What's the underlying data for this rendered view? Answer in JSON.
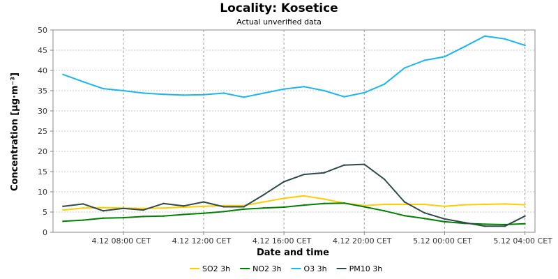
{
  "chart_data": {
    "type": "line",
    "title": "Locality: Kosetice",
    "subtitle": "Actual unverified data",
    "xlabel": "Date and time",
    "ylabel": "Concentration [µg·m⁻³]",
    "ylim": [
      0,
      50
    ],
    "yticks": [
      0,
      5,
      10,
      15,
      20,
      25,
      30,
      35,
      40,
      45,
      50
    ],
    "x_tick_labels": [
      {
        "hour": 8,
        "label": "4.12 08:00 CET"
      },
      {
        "hour": 12,
        "label": "4.12 12:00 CET"
      },
      {
        "hour": 16,
        "label": "4.12 16:00 CET"
      },
      {
        "hour": 20,
        "label": "4.12 20:00 CET"
      },
      {
        "hour": 24,
        "label": "5.12 00:00 CET"
      },
      {
        "hour": 28,
        "label": "5.12 04:00 CET"
      }
    ],
    "x_hours": [
      5,
      6,
      7,
      8,
      9,
      10,
      11,
      12,
      13,
      14,
      15,
      16,
      17,
      18,
      19,
      20,
      21,
      22,
      23,
      24,
      25,
      26,
      27,
      28
    ],
    "grid": true,
    "legend_position": "bottom",
    "series": [
      {
        "name": "SO2 3h",
        "color": "#ffcc00",
        "values": [
          5.5,
          6.0,
          6.1,
          6.0,
          5.9,
          6.0,
          6.2,
          6.4,
          6.6,
          6.6,
          7.5,
          8.4,
          9.0,
          8.2,
          7.2,
          6.6,
          6.9,
          6.9,
          6.9,
          6.4,
          6.8,
          6.9,
          7.0,
          6.8
        ]
      },
      {
        "name": "NO2 3h",
        "color": "#008000",
        "values": [
          2.7,
          3.0,
          3.5,
          3.6,
          3.9,
          4.0,
          4.4,
          4.7,
          5.1,
          5.7,
          6.0,
          6.2,
          6.7,
          7.1,
          7.2,
          6.3,
          5.3,
          4.1,
          3.4,
          2.6,
          2.2,
          2.0,
          1.9,
          2.1
        ]
      },
      {
        "name": "O3 3h",
        "color": "#1ab6ef",
        "values": [
          39.0,
          37.2,
          35.5,
          35.0,
          34.4,
          34.1,
          33.9,
          34.0,
          34.4,
          33.4,
          34.4,
          35.4,
          36.0,
          35.0,
          33.5,
          34.5,
          36.6,
          40.6,
          42.5,
          43.4,
          45.9,
          48.5,
          47.8,
          46.2
        ]
      },
      {
        "name": "PM10 3h",
        "color": "#2e4a4a",
        "values": [
          6.4,
          7.0,
          5.3,
          5.9,
          5.5,
          7.1,
          6.5,
          7.5,
          6.3,
          6.3,
          9.3,
          12.5,
          14.3,
          14.7,
          16.6,
          16.8,
          13.1,
          7.5,
          4.8,
          3.3,
          2.4,
          1.5,
          1.5,
          4.0
        ]
      }
    ]
  }
}
